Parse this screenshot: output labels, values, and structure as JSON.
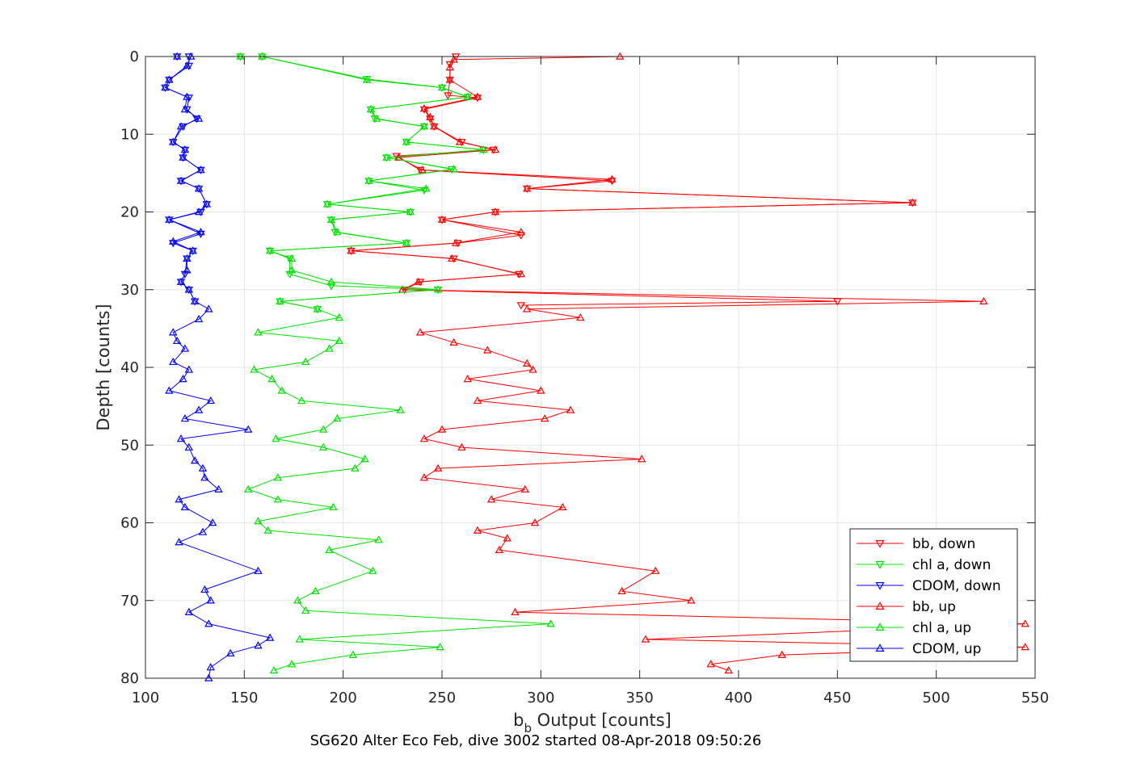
{
  "chart_data": {
    "type": "line",
    "xlabel_main": "b",
    "xlabel_sub": "b",
    "xlabel_rest": " Output [counts]",
    "ylabel": "Depth [counts]",
    "caption": "SG620 Alter Eco Feb, dive 3002 started 08-Apr-2018 09:50:26",
    "xlim": [
      100,
      550
    ],
    "ylim": [
      0,
      80
    ],
    "y_reversed": true,
    "grid": true,
    "legend_position": "bottom-right",
    "xticks": [
      100,
      150,
      200,
      250,
      300,
      350,
      400,
      450,
      500,
      550
    ],
    "yticks": [
      0,
      10,
      20,
      30,
      40,
      50,
      60,
      70,
      80
    ],
    "series": [
      {
        "name": "bb, down",
        "color": "#ff0000",
        "marker": "down",
        "x": [
          257,
          254,
          254,
          253,
          268,
          241,
          244,
          246,
          260,
          276,
          227,
          239,
          336,
          293,
          488,
          277,
          250,
          290,
          258,
          204,
          256,
          289,
          239,
          231,
          450,
          290
        ],
        "y": [
          0,
          1,
          3,
          5,
          5.3,
          6.8,
          8,
          9,
          11,
          12,
          12.8,
          14.6,
          16,
          17,
          18.8,
          20,
          21,
          23,
          24,
          25,
          26,
          28,
          29,
          30,
          31.5,
          32
        ]
      },
      {
        "name": "chl a, down",
        "color": "#00e000",
        "marker": "down",
        "x": [
          148,
          159,
          212,
          250,
          263,
          214,
          216,
          241,
          232,
          271,
          222,
          255,
          213,
          241,
          192,
          234,
          194,
          196,
          232,
          163,
          173,
          173,
          194,
          248,
          168,
          187
        ],
        "y": [
          0,
          0,
          2.9,
          4,
          5.2,
          6.8,
          8,
          9,
          11,
          12,
          13,
          14.5,
          16,
          17.2,
          19,
          20,
          21,
          22.6,
          24,
          25,
          26,
          28,
          29.5,
          30,
          31.5,
          32.5
        ]
      },
      {
        "name": "CDOM, down",
        "color": "#0000ff",
        "marker": "down",
        "x": [
          116,
          122,
          122,
          112,
          110,
          122,
          121,
          126,
          119,
          114,
          120,
          119,
          128,
          118,
          127,
          131,
          128,
          112,
          128,
          114,
          124,
          121,
          120,
          118,
          122,
          125
        ],
        "y": [
          0,
          0,
          1.2,
          3,
          4,
          5.3,
          6.8,
          8,
          9,
          11,
          12,
          13,
          14.6,
          16,
          17,
          19,
          20,
          21,
          22.8,
          24,
          25,
          26,
          28,
          29,
          30,
          31.5
        ]
      },
      {
        "name": "bb, up",
        "color": "#ff0000",
        "marker": "up",
        "x": [
          340,
          256,
          254,
          254,
          268,
          241,
          244,
          246,
          259,
          277,
          228,
          240,
          336,
          293,
          488,
          277,
          250,
          290,
          257,
          204,
          255,
          290,
          238,
          230,
          524,
          293,
          320,
          239,
          256,
          273,
          293,
          296,
          263,
          300,
          268,
          315,
          302,
          250,
          241,
          260,
          351,
          248,
          241,
          292,
          275,
          311,
          297,
          268,
          283,
          279,
          358,
          341,
          376,
          287,
          545,
          353,
          545,
          422,
          386,
          395
        ],
        "y": [
          0,
          0.4,
          1.4,
          3,
          5.2,
          6.7,
          7.8,
          9,
          11,
          12,
          13,
          14.6,
          15.8,
          17,
          18.8,
          20,
          21,
          22.6,
          24,
          25,
          26,
          28,
          29,
          30,
          31.5,
          32.5,
          33.6,
          35.5,
          36.8,
          37.8,
          39.5,
          40.3,
          41.5,
          43,
          44.3,
          45.5,
          46.6,
          48,
          49.2,
          50.3,
          51.8,
          53,
          54.2,
          55.7,
          57,
          58,
          60,
          61,
          62,
          63.5,
          66.2,
          68.8,
          70,
          71.5,
          73,
          75,
          76,
          77,
          78.2,
          79
        ]
      },
      {
        "name": "chl a, up",
        "color": "#00e000",
        "marker": "up",
        "x": [
          148,
          159,
          212,
          250,
          263,
          214,
          217,
          241,
          232,
          271,
          222,
          256,
          213,
          242,
          192,
          234,
          194,
          197,
          232,
          163,
          174,
          174,
          194,
          248,
          168,
          187,
          198,
          157,
          198,
          193,
          181,
          155,
          164,
          169,
          179,
          229,
          197,
          190,
          166,
          190,
          211,
          206,
          167,
          152,
          167,
          195,
          157,
          162,
          218,
          193,
          215,
          186,
          177,
          181,
          305,
          178,
          249,
          205,
          174,
          165
        ],
        "y": [
          0,
          0,
          3,
          4,
          5.2,
          6.8,
          8,
          9,
          11,
          12,
          13,
          14.5,
          16,
          17,
          19,
          20,
          21,
          22.6,
          24,
          25,
          26,
          27.5,
          29,
          30,
          31.5,
          32.5,
          33.6,
          35.5,
          36.6,
          37.6,
          39.3,
          40.3,
          41.5,
          43,
          44.3,
          45.5,
          46.6,
          48,
          49.2,
          50.3,
          51.8,
          53,
          54.2,
          55.7,
          57,
          58,
          59.8,
          61,
          62.2,
          63.5,
          66.2,
          68.8,
          70,
          71.3,
          73,
          75,
          76,
          77,
          78.2,
          79
        ]
      },
      {
        "name": "CDOM, up",
        "color": "#0000ff",
        "marker": "up",
        "x": [
          116,
          123,
          121,
          112,
          110,
          121,
          120,
          127,
          118,
          114,
          120,
          119,
          128,
          118,
          127,
          131,
          127,
          112,
          128,
          114,
          124,
          121,
          121,
          118,
          122,
          125,
          132,
          127,
          114,
          116,
          120,
          114,
          122,
          119,
          112,
          133,
          127,
          120,
          152,
          118,
          122,
          125,
          129,
          130,
          137,
          117,
          120,
          134,
          129,
          117,
          157,
          130,
          133,
          122,
          132,
          163,
          157,
          143,
          133,
          132
        ],
        "y": [
          0,
          0,
          1.2,
          3,
          4,
          5.2,
          6.8,
          8,
          9,
          11,
          12,
          13,
          14.6,
          16,
          17,
          19,
          20,
          21,
          22.6,
          23.8,
          25,
          26,
          27.5,
          29,
          30,
          31.5,
          32.5,
          33.8,
          35.5,
          36.6,
          37.6,
          39.3,
          40.3,
          41.5,
          43,
          44.3,
          45.5,
          46.6,
          48,
          49.2,
          50.3,
          52,
          53,
          54.2,
          55.7,
          57,
          58,
          60,
          61.2,
          62.5,
          66.2,
          68.6,
          70,
          71.5,
          73,
          74.8,
          75.8,
          76.8,
          78.6,
          80
        ]
      }
    ]
  }
}
